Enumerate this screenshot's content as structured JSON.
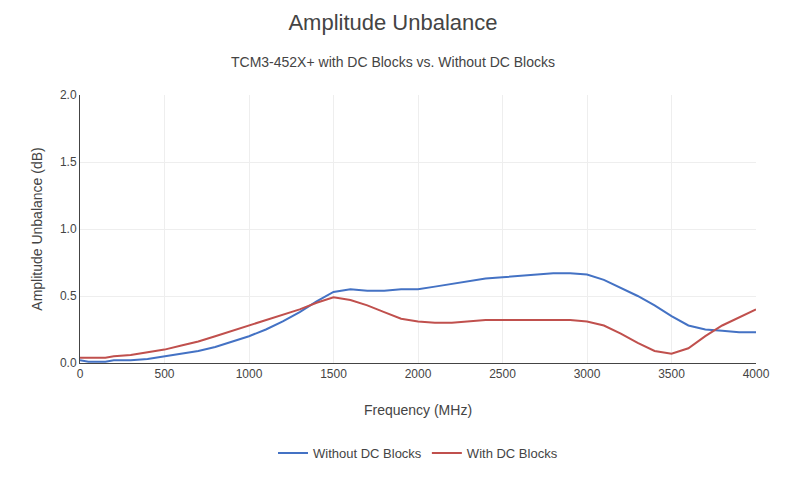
{
  "chart_data": {
    "type": "line",
    "title": "Amplitude Unbalance",
    "subtitle": "TCM3-452X+ with DC Blocks vs. Without DC Blocks",
    "xlabel": "Frequency (MHz)",
    "ylabel": "Amplitude Unbalance (dB)",
    "x": [
      0,
      50,
      100,
      150,
      200,
      300,
      400,
      500,
      600,
      700,
      800,
      900,
      1000,
      1100,
      1200,
      1300,
      1400,
      1500,
      1600,
      1700,
      1800,
      1900,
      2000,
      2100,
      2200,
      2300,
      2400,
      2500,
      2600,
      2700,
      2800,
      2900,
      3000,
      3100,
      3200,
      3300,
      3400,
      3500,
      3600,
      3700,
      3800,
      3900,
      4000
    ],
    "series": [
      {
        "name": "Without DC Blocks",
        "color": "#4472C4",
        "values": [
          0.02,
          0.01,
          0.01,
          0.01,
          0.02,
          0.02,
          0.03,
          0.05,
          0.07,
          0.09,
          0.12,
          0.16,
          0.2,
          0.25,
          0.31,
          0.38,
          0.46,
          0.53,
          0.55,
          0.54,
          0.54,
          0.55,
          0.55,
          0.57,
          0.59,
          0.61,
          0.63,
          0.64,
          0.65,
          0.66,
          0.67,
          0.67,
          0.66,
          0.62,
          0.56,
          0.5,
          0.43,
          0.35,
          0.28,
          0.25,
          0.24,
          0.23,
          0.23
        ]
      },
      {
        "name": "With DC Blocks",
        "color": "#C0504D",
        "values": [
          0.04,
          0.04,
          0.04,
          0.04,
          0.05,
          0.06,
          0.08,
          0.1,
          0.13,
          0.16,
          0.2,
          0.24,
          0.28,
          0.32,
          0.36,
          0.4,
          0.45,
          0.49,
          0.47,
          0.43,
          0.38,
          0.33,
          0.31,
          0.3,
          0.3,
          0.31,
          0.32,
          0.32,
          0.32,
          0.32,
          0.32,
          0.32,
          0.31,
          0.28,
          0.22,
          0.15,
          0.09,
          0.07,
          0.11,
          0.2,
          0.28,
          0.34,
          0.4
        ]
      }
    ],
    "xlim": [
      0,
      4000
    ],
    "ylim": [
      0.0,
      2.0
    ],
    "xticks": [
      0,
      500,
      1000,
      1500,
      2000,
      2500,
      3000,
      3500,
      4000
    ],
    "yticks": [
      {
        "value": 0.0,
        "label": "0.0"
      },
      0.5,
      {
        "value": 1.0,
        "label": "1.0"
      },
      1.5,
      {
        "value": 2.0,
        "label": "2.0"
      }
    ],
    "grid": true,
    "legend": "bottom"
  }
}
